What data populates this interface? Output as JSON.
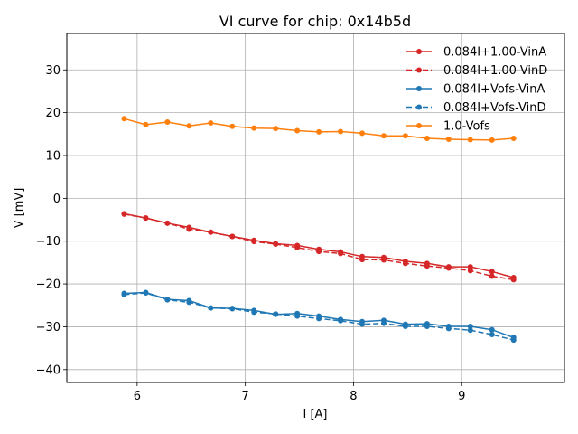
{
  "chart_data": {
    "type": "line",
    "title": "VI curve for chip: 0x14b5d",
    "xlabel": "I [A]",
    "ylabel": "V [mV]",
    "xlim": [
      5.35,
      9.95
    ],
    "ylim": [
      -43,
      38.5
    ],
    "xticks": [
      6,
      7,
      8,
      9
    ],
    "yticks": [
      -40,
      -30,
      -20,
      -10,
      0,
      10,
      20,
      30
    ],
    "grid": true,
    "legend_position": "upper-right",
    "x": [
      5.88,
      6.08,
      6.28,
      6.48,
      6.68,
      6.88,
      7.08,
      7.28,
      7.48,
      7.68,
      7.88,
      8.08,
      8.28,
      8.48,
      8.68,
      8.88,
      9.08,
      9.28,
      9.48
    ],
    "series": [
      {
        "name": "0.084I+1.00-VinA",
        "color": "#d62728",
        "style": "solid",
        "values": [
          -3.6,
          -4.6,
          -5.8,
          -6.8,
          -7.9,
          -8.9,
          -9.8,
          -10.6,
          -11.0,
          -11.9,
          -12.5,
          -13.6,
          -13.8,
          -14.7,
          -15.2,
          -16.0,
          -16.0,
          -17.1,
          -18.5
        ]
      },
      {
        "name": "0.084I+1.00-VinD",
        "color": "#d62728",
        "style": "dashed",
        "values": [
          -3.7,
          -4.6,
          -5.8,
          -7.2,
          -7.9,
          -8.9,
          -10.1,
          -10.7,
          -11.5,
          -12.4,
          -12.9,
          -14.3,
          -14.4,
          -15.2,
          -15.8,
          -16.3,
          -16.9,
          -18.2,
          -19.0
        ]
      },
      {
        "name": "0.084I+Vofs-VinA",
        "color": "#1f77b4",
        "style": "solid",
        "values": [
          -22.2,
          -22.0,
          -23.6,
          -23.9,
          -25.6,
          -25.7,
          -26.2,
          -27.1,
          -26.9,
          -27.5,
          -28.3,
          -28.8,
          -28.5,
          -29.4,
          -29.3,
          -29.9,
          -29.9,
          -30.7,
          -32.5
        ]
      },
      {
        "name": "0.084I+Vofs-VinD",
        "color": "#1f77b4",
        "style": "dashed",
        "values": [
          -22.5,
          -22.1,
          -23.7,
          -24.3,
          -25.6,
          -25.8,
          -26.6,
          -27.0,
          -27.5,
          -28.1,
          -28.6,
          -29.4,
          -29.2,
          -29.9,
          -29.9,
          -30.4,
          -30.8,
          -31.8,
          -33.1
        ]
      },
      {
        "name": "1.0-Vofs",
        "color": "#ff7f0e",
        "style": "solid",
        "values": [
          18.6,
          17.2,
          17.8,
          16.9,
          17.6,
          16.8,
          16.4,
          16.3,
          15.8,
          15.5,
          15.6,
          15.2,
          14.6,
          14.6,
          14.0,
          13.8,
          13.7,
          13.6,
          14.0
        ]
      }
    ]
  }
}
